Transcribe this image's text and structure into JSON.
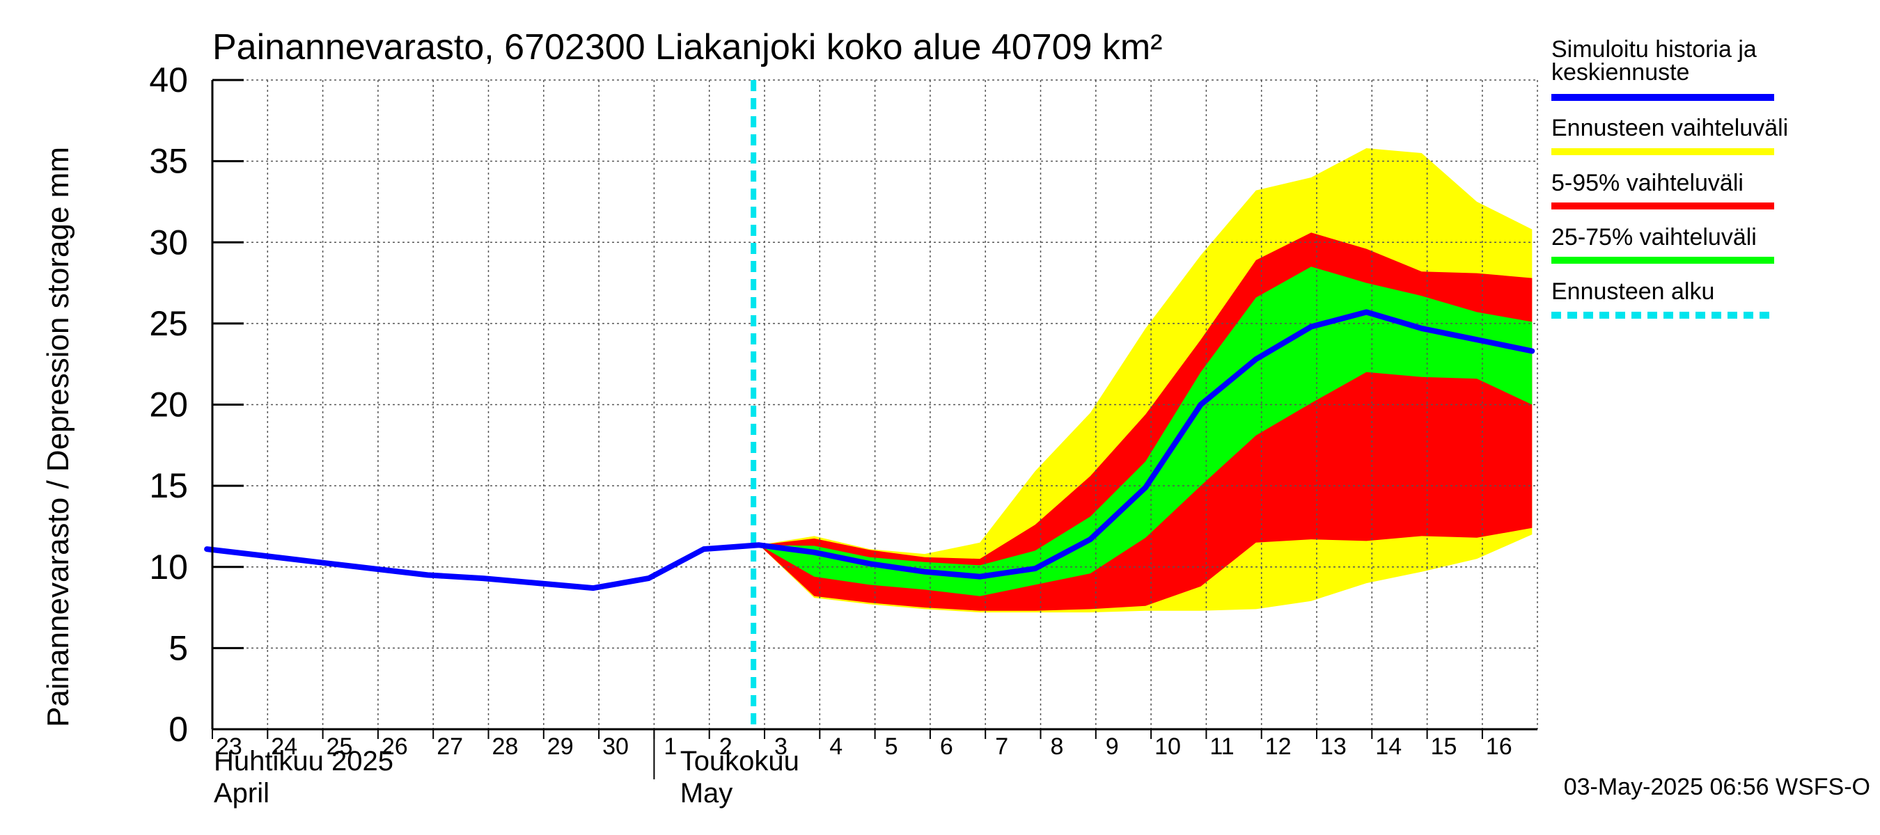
{
  "chart_data": {
    "type": "area",
    "title": "Painannevarasto, 6702300 Liakanjoki koko alue 40709 km²",
    "ylabel": "Painannevarasto / Depression storage    mm",
    "ylim": [
      0,
      40
    ],
    "yticks": [
      0,
      5,
      10,
      15,
      20,
      25,
      30,
      35,
      40
    ],
    "grid": true,
    "x_day_labels": [
      "23",
      "24",
      "25",
      "26",
      "27",
      "28",
      "29",
      "30",
      "1",
      "2",
      "3",
      "4",
      "5",
      "6",
      "7",
      "8",
      "9",
      "10",
      "11",
      "12",
      "13",
      "14",
      "15",
      "16"
    ],
    "month_labels": [
      {
        "line1": "Huhtikuu  2025",
        "line2": "April"
      },
      {
        "line1": "Toukokuu",
        "line2": "May"
      }
    ],
    "forecast_start_day_index": 9.8,
    "series": [
      {
        "name": "Simuloitu historia ja keskiennuste",
        "color": "#0000ff",
        "x": [
          -0.1,
          0.9,
          1.9,
          2.9,
          3.9,
          4.9,
          5.9,
          6.9,
          7.9,
          8.9,
          9.9,
          10.9,
          11.9,
          12.9,
          13.9,
          14.9,
          15.9,
          16.9,
          17.9,
          18.9,
          19.9,
          20.9,
          21.9,
          22.9,
          23.9
        ],
        "values": [
          11.1,
          10.7,
          10.3,
          9.9,
          9.5,
          9.3,
          9.0,
          8.7,
          9.3,
          11.1,
          11.35,
          10.9,
          10.2,
          9.7,
          9.4,
          9.9,
          11.7,
          14.9,
          20.0,
          22.8,
          24.8,
          25.7,
          24.7,
          24.0,
          23.3
        ]
      },
      {
        "name": "Ennusteen vaihteluväli",
        "color": "#ffff00",
        "x": [
          9.9,
          10.9,
          11.9,
          12.9,
          13.9,
          14.9,
          15.9,
          16.9,
          17.9,
          18.9,
          19.9,
          20.9,
          21.9,
          22.9,
          23.9
        ],
        "upper": [
          11.35,
          11.9,
          11.1,
          10.8,
          11.5,
          15.9,
          19.5,
          24.7,
          29.2,
          33.2,
          34.0,
          35.8,
          35.5,
          32.5,
          30.8
        ],
        "lower": [
          11.35,
          8.1,
          7.7,
          7.4,
          7.2,
          7.2,
          7.2,
          7.3,
          7.3,
          7.4,
          7.9,
          9.0,
          9.7,
          10.5,
          12.0
        ]
      },
      {
        "name": "5-95% vaihteluväli",
        "color": "#ff0000",
        "x": [
          9.9,
          10.9,
          11.9,
          12.9,
          13.9,
          14.9,
          15.9,
          16.9,
          17.9,
          18.9,
          19.9,
          20.9,
          21.9,
          22.9,
          23.9
        ],
        "upper": [
          11.35,
          11.75,
          11.05,
          10.6,
          10.5,
          12.6,
          15.6,
          19.4,
          24.0,
          28.9,
          30.6,
          29.6,
          28.2,
          28.1,
          27.8
        ],
        "lower": [
          11.35,
          8.2,
          7.8,
          7.5,
          7.3,
          7.3,
          7.4,
          7.6,
          8.8,
          11.5,
          11.7,
          11.6,
          11.9,
          11.8,
          12.4
        ]
      },
      {
        "name": "25-75% vaihteluväli",
        "color": "#00ff00",
        "x": [
          9.9,
          10.9,
          11.9,
          12.9,
          13.9,
          14.9,
          15.9,
          16.9,
          17.9,
          18.9,
          19.9,
          20.9,
          21.9,
          22.9,
          23.9
        ],
        "upper": [
          11.35,
          11.3,
          10.6,
          10.3,
          10.1,
          11.0,
          13.1,
          16.5,
          22.0,
          26.6,
          28.5,
          27.5,
          26.7,
          25.7,
          25.1
        ],
        "lower": [
          11.35,
          9.4,
          8.9,
          8.6,
          8.2,
          8.9,
          9.6,
          11.8,
          15.0,
          18.1,
          20.1,
          22.0,
          21.7,
          21.6,
          20.0
        ]
      }
    ],
    "legend": [
      {
        "lines": [
          "Simuloitu historia ja",
          "keskiennuste"
        ],
        "color": "#0000ff",
        "style": "solid"
      },
      {
        "lines": [
          "Ennusteen vaihteluväli"
        ],
        "color": "#ffff00",
        "style": "solid"
      },
      {
        "lines": [
          "5-95% vaihteluväli"
        ],
        "color": "#ff0000",
        "style": "solid"
      },
      {
        "lines": [
          "25-75% vaihteluväli"
        ],
        "color": "#00ff00",
        "style": "solid"
      },
      {
        "lines": [
          "Ennusteen alku"
        ],
        "color": "#00e5ee",
        "style": "dashed"
      }
    ],
    "footer": "03-May-2025 06:56 WSFS-O"
  }
}
